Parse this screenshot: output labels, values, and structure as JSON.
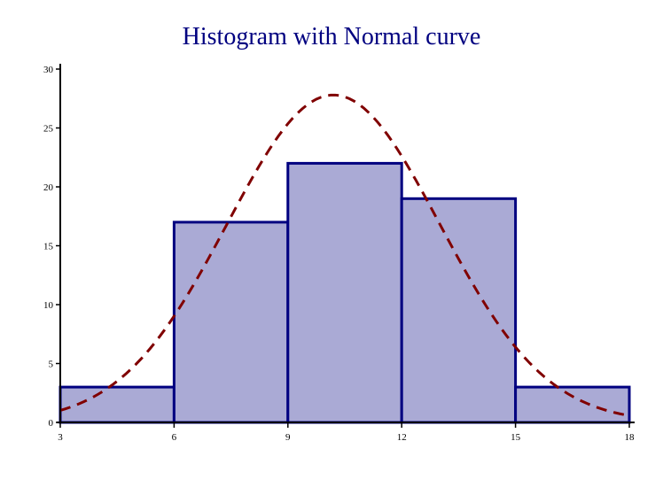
{
  "chart_data": {
    "type": "bar",
    "title": "Histogram with Normal curve",
    "xlabel": "",
    "ylabel": "",
    "x_ticks": [
      "3",
      "6",
      "9",
      "12",
      "15",
      "18"
    ],
    "y_ticks": [
      "0",
      "5",
      "10",
      "15",
      "20",
      "25",
      "30"
    ],
    "xlim": [
      3,
      18
    ],
    "ylim": [
      0,
      30
    ],
    "bins": [
      {
        "from": 3,
        "to": 6,
        "value": 3
      },
      {
        "from": 6,
        "to": 9,
        "value": 17
      },
      {
        "from": 9,
        "to": 12,
        "value": 22
      },
      {
        "from": 12,
        "to": 15,
        "value": 19
      },
      {
        "from": 15,
        "to": 18,
        "value": 3
      }
    ],
    "normal_curve": {
      "mean": 10.2,
      "sd": 2.8,
      "peak": 27.8,
      "style": "dashed"
    },
    "grid": false,
    "legend": "none"
  },
  "colors": {
    "title": "#000080",
    "bar_fill": "#aaaad5",
    "bar_stroke": "#000080",
    "curve": "#800000",
    "axis": "#000000"
  }
}
